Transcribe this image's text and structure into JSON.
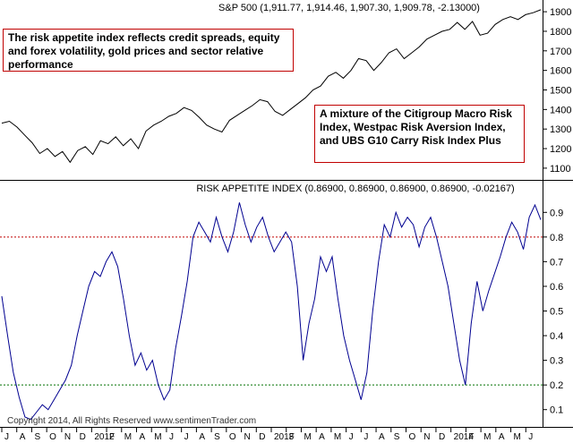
{
  "chart_data": [
    {
      "type": "line",
      "title": "S&P 500 (1,911.77, 1,914.46, 1,907.30, 1,909.78, -2.13000)",
      "yticks": [
        1100,
        1200,
        1300,
        1400,
        1500,
        1600,
        1700,
        1800,
        1900
      ],
      "ylim": [
        1040,
        1960
      ],
      "series": [
        {
          "values": [
            1330,
            1340,
            1310,
            1270,
            1230,
            1175,
            1200,
            1160,
            1185,
            1130,
            1190,
            1210,
            1170,
            1240,
            1225,
            1260,
            1215,
            1250,
            1200,
            1290,
            1320,
            1340,
            1365,
            1380,
            1410,
            1395,
            1360,
            1320,
            1300,
            1285,
            1345,
            1370,
            1395,
            1420,
            1450,
            1440,
            1390,
            1370,
            1400,
            1430,
            1460,
            1500,
            1520,
            1570,
            1590,
            1560,
            1600,
            1660,
            1650,
            1600,
            1640,
            1690,
            1710,
            1660,
            1690,
            1720,
            1760,
            1780,
            1800,
            1810,
            1845,
            1810,
            1850,
            1780,
            1790,
            1835,
            1860,
            1875,
            1860,
            1885,
            1895,
            1910
          ]
        }
      ],
      "annotations": [
        "The risk appetite index reflects credit spreads, equity and forex volatility, gold prices and sector relative performance",
        "A mixture of the Citigroup Macro Risk Index, Westpac Risk Aversion Index, and UBS G10 Carry Risk Index Plus"
      ]
    },
    {
      "type": "line",
      "title": "RISK APPETITE INDEX (0.86900, 0.86900, 0.86900, 0.86900, -0.02167)",
      "yticks": [
        0.1,
        0.2,
        0.3,
        0.4,
        0.5,
        0.6,
        0.7,
        0.8,
        0.9
      ],
      "ylim": [
        0.03,
        0.97
      ],
      "reference_lines": [
        {
          "value": 0.8,
          "color": "#c00000"
        },
        {
          "value": 0.2,
          "color": "#007000"
        }
      ],
      "series": [
        {
          "values": [
            0.56,
            0.4,
            0.25,
            0.15,
            0.07,
            0.06,
            0.09,
            0.12,
            0.1,
            0.14,
            0.18,
            0.22,
            0.28,
            0.4,
            0.5,
            0.6,
            0.66,
            0.64,
            0.7,
            0.74,
            0.68,
            0.55,
            0.4,
            0.28,
            0.33,
            0.26,
            0.3,
            0.2,
            0.14,
            0.18,
            0.35,
            0.48,
            0.62,
            0.8,
            0.86,
            0.82,
            0.78,
            0.88,
            0.8,
            0.74,
            0.82,
            0.94,
            0.85,
            0.78,
            0.84,
            0.88,
            0.8,
            0.74,
            0.78,
            0.82,
            0.78,
            0.6,
            0.3,
            0.45,
            0.55,
            0.72,
            0.66,
            0.72,
            0.55,
            0.4,
            0.3,
            0.22,
            0.14,
            0.25,
            0.5,
            0.7,
            0.85,
            0.8,
            0.9,
            0.84,
            0.88,
            0.85,
            0.76,
            0.84,
            0.88,
            0.8,
            0.7,
            0.6,
            0.45,
            0.3,
            0.2,
            0.45,
            0.62,
            0.5,
            0.58,
            0.65,
            0.72,
            0.8,
            0.86,
            0.82,
            0.75,
            0.88,
            0.93,
            0.87
          ]
        }
      ]
    }
  ],
  "x_axis": {
    "labels": [
      "J",
      "A",
      "S",
      "O",
      "N",
      "D",
      "2012",
      "F",
      "M",
      "A",
      "M",
      "J",
      "J",
      "A",
      "S",
      "O",
      "N",
      "D",
      "2013",
      "F",
      "M",
      "A",
      "M",
      "J",
      "J",
      "A",
      "S",
      "O",
      "N",
      "D",
      "2014",
      "F",
      "M",
      "A",
      "M",
      "J"
    ]
  },
  "copyright": "Copyright 2014, All Rights Reserved  www.sentimenTrader.com"
}
